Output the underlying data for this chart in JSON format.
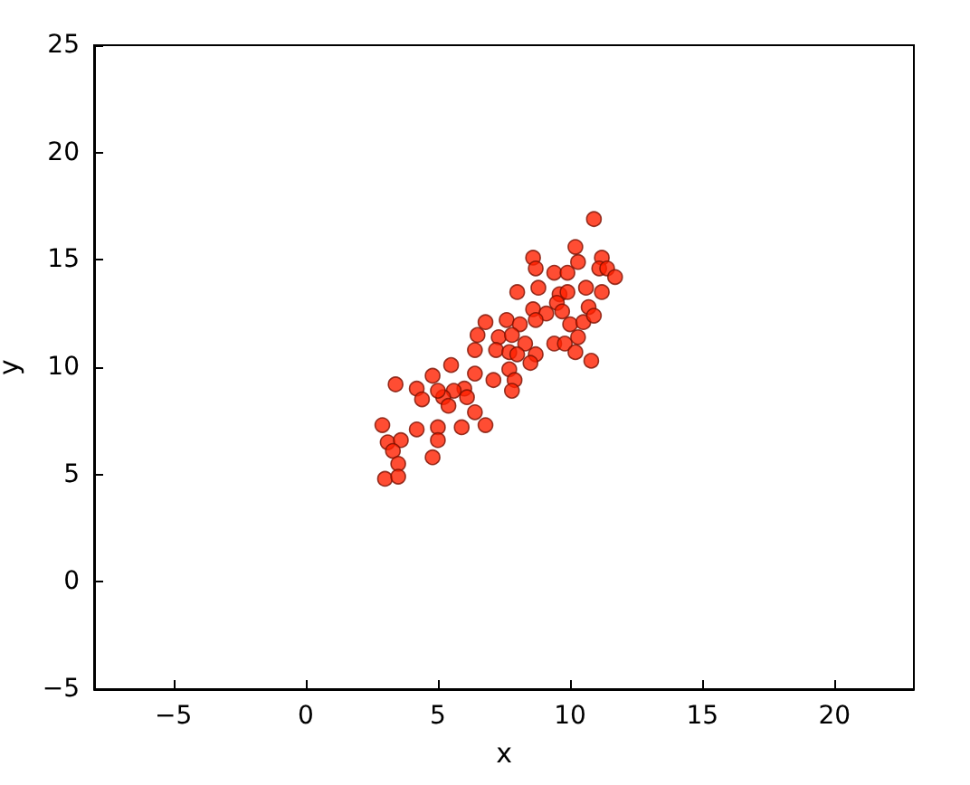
{
  "chart_data": {
    "type": "scatter",
    "xlabel": "x",
    "ylabel": "y",
    "xlim": [
      -8,
      23
    ],
    "ylim": [
      -5,
      25
    ],
    "xticks": [
      -5,
      0,
      5,
      10,
      15,
      20
    ],
    "yticks": [
      -5,
      0,
      5,
      10,
      15,
      20,
      25
    ],
    "grid": false,
    "marker": "circle",
    "series": [
      {
        "color": "#ff2000",
        "x": [
          10.9,
          10.2,
          8.6,
          10.3,
          11.2,
          8.7,
          9.4,
          9.9,
          11.1,
          11.4,
          11.7,
          8.0,
          8.8,
          10.6,
          11.2,
          9.6,
          9.9,
          9.5,
          8.6,
          9.1,
          9.7,
          10.7,
          6.8,
          7.6,
          8.1,
          8.7,
          10.0,
          10.5,
          10.9,
          6.5,
          7.3,
          7.8,
          8.3,
          9.4,
          9.8,
          10.3,
          6.4,
          7.2,
          7.7,
          8.0,
          8.7,
          10.2,
          10.8,
          5.5,
          6.4,
          7.1,
          7.7,
          7.9,
          8.5,
          4.8,
          6.0,
          5.6,
          5.2,
          7.8,
          3.4,
          4.2,
          4.4,
          5.0,
          5.4,
          6.1,
          6.4,
          6.8,
          5.9,
          2.9,
          3.1,
          3.6,
          4.2,
          5.0,
          5.0,
          3.3,
          3.5,
          3.0,
          3.5,
          4.8
        ],
        "values": [
          16.9,
          15.6,
          15.1,
          14.9,
          15.1,
          14.6,
          14.4,
          14.4,
          14.6,
          14.6,
          14.2,
          13.5,
          13.7,
          13.7,
          13.5,
          13.4,
          13.5,
          13.0,
          12.7,
          12.5,
          12.6,
          12.8,
          12.1,
          12.2,
          12.0,
          12.2,
          12.0,
          12.1,
          12.4,
          11.5,
          11.4,
          11.5,
          11.1,
          11.1,
          11.1,
          11.4,
          10.8,
          10.8,
          10.7,
          10.6,
          10.6,
          10.7,
          10.3,
          10.1,
          9.7,
          9.4,
          9.9,
          9.4,
          10.2,
          9.6,
          9.0,
          8.9,
          8.6,
          8.9,
          9.2,
          9.0,
          8.5,
          8.9,
          8.2,
          8.6,
          7.9,
          7.3,
          7.2,
          7.3,
          6.5,
          6.6,
          7.1,
          7.2,
          6.6,
          6.1,
          5.5,
          4.8,
          4.9,
          5.8
        ]
      }
    ]
  }
}
